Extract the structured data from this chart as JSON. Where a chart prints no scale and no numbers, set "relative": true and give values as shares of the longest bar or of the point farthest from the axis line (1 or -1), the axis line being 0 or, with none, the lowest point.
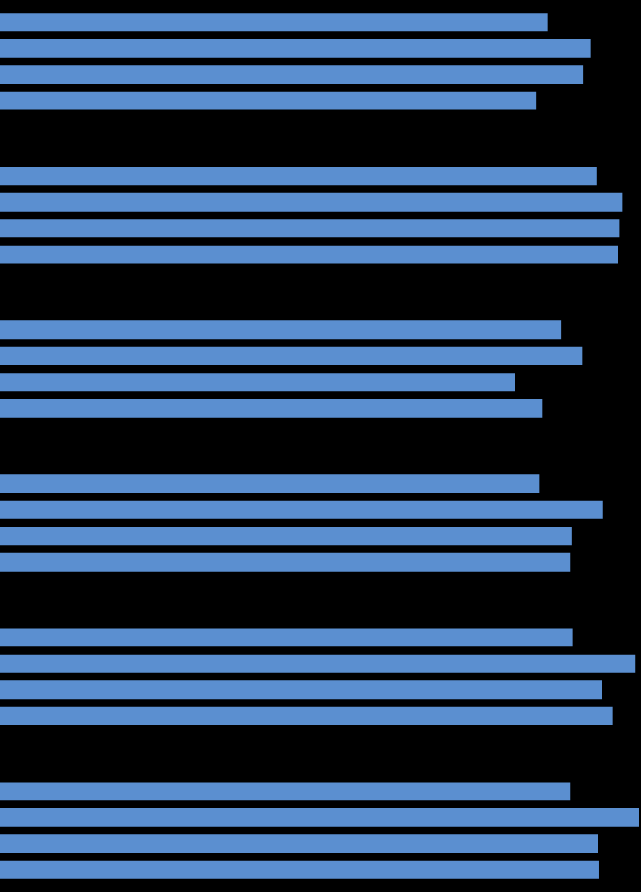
{
  "chart_data": {
    "type": "bar",
    "orientation": "horizontal",
    "relative": true,
    "categories": [
      null,
      null,
      null,
      null,
      null,
      null
    ],
    "series": [
      {
        "color": "#5b8fd0",
        "values": [
          0.856,
          0.933,
          0.878,
          0.843,
          0.895,
          0.892
        ]
      },
      {
        "color": "#5b8fd0",
        "values": [
          0.924,
          0.974,
          0.911,
          0.943,
          0.994,
          1
        ]
      },
      {
        "color": "#5b8fd0",
        "values": [
          0.912,
          0.969,
          0.805,
          0.894,
          0.942,
          0.935
        ]
      },
      {
        "color": "#5b8fd0",
        "values": [
          0.839,
          0.967,
          0.848,
          0.892,
          0.958,
          0.937
        ]
      }
    ]
  }
}
